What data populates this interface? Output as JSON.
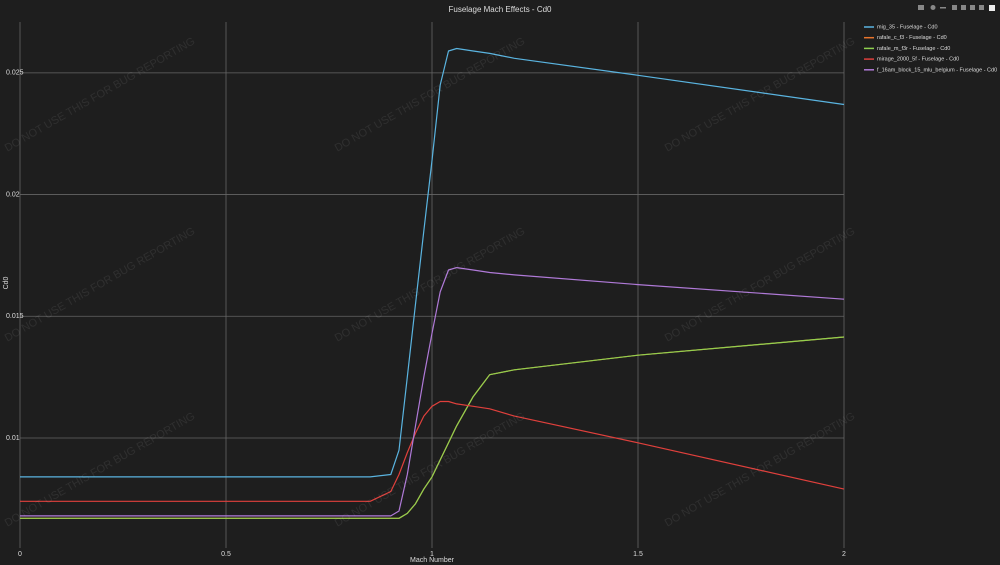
{
  "chart_data": {
    "type": "line",
    "title": "Fuselage Mach Effects - Cd0",
    "x_label": "Mach Number",
    "y_label": "Cd0",
    "watermark": "DO NOT USE THIS FOR BUG REPORTING",
    "x": [
      0,
      0.5,
      0.85,
      0.9,
      0.92,
      0.94,
      0.96,
      0.98,
      1.0,
      1.02,
      1.04,
      1.06,
      1.1,
      1.14,
      1.2,
      1.5,
      2
    ],
    "xlim": [
      0,
      2
    ],
    "xticks": [
      0,
      0.5,
      1,
      1.5,
      2
    ],
    "ylim": [
      0.00548,
      0.02709
    ],
    "yticks": [
      0.01,
      0.015,
      0.02,
      0.025
    ],
    "grid": true,
    "series": [
      {
        "name": "mig_35 - Fuselage - Cd0",
        "color": "#5ab4e0",
        "values": [
          0.0084,
          0.0084,
          0.0084,
          0.0085,
          0.0095,
          0.0125,
          0.0155,
          0.0185,
          0.0214,
          0.0245,
          0.0259,
          0.026,
          0.0259,
          0.0258,
          0.0256,
          0.0249,
          0.0237
        ]
      },
      {
        "name": "rafale_c_f3 - Fuselage - Cd0",
        "color": "#e8742c",
        "values": [
          0.0067,
          0.0067,
          0.0067,
          0.0067,
          0.0067,
          0.0069,
          0.0073,
          0.0079,
          0.0084,
          0.0091,
          0.0098,
          0.0105,
          0.0117,
          0.0126,
          0.0128,
          0.0134,
          0.01415
        ]
      },
      {
        "name": "rafale_m_f3r - Fuselage - Cd0",
        "color": "#8fd14f",
        "values": [
          0.0067,
          0.0067,
          0.0067,
          0.0067,
          0.0067,
          0.0069,
          0.0073,
          0.0079,
          0.0084,
          0.0091,
          0.0098,
          0.0105,
          0.0117,
          0.0126,
          0.0128,
          0.0134,
          0.01415
        ]
      },
      {
        "name": "mirage_2000_5f - Fuselage - Cd0",
        "color": "#e0403c",
        "values": [
          0.0074,
          0.0074,
          0.0074,
          0.0078,
          0.0085,
          0.0094,
          0.0102,
          0.0109,
          0.0113,
          0.0115,
          0.0115,
          0.0114,
          0.0113,
          0.0112,
          0.0109,
          0.0098,
          0.0079
        ]
      },
      {
        "name": "f_16am_block_15_mlu_belgium - Fuselage - Cd0",
        "color": "#b07ad8",
        "values": [
          0.0068,
          0.0068,
          0.0068,
          0.0068,
          0.007,
          0.0085,
          0.0105,
          0.0125,
          0.0143,
          0.016,
          0.0169,
          0.017,
          0.0169,
          0.0168,
          0.0167,
          0.0163,
          0.0157
        ]
      }
    ]
  }
}
